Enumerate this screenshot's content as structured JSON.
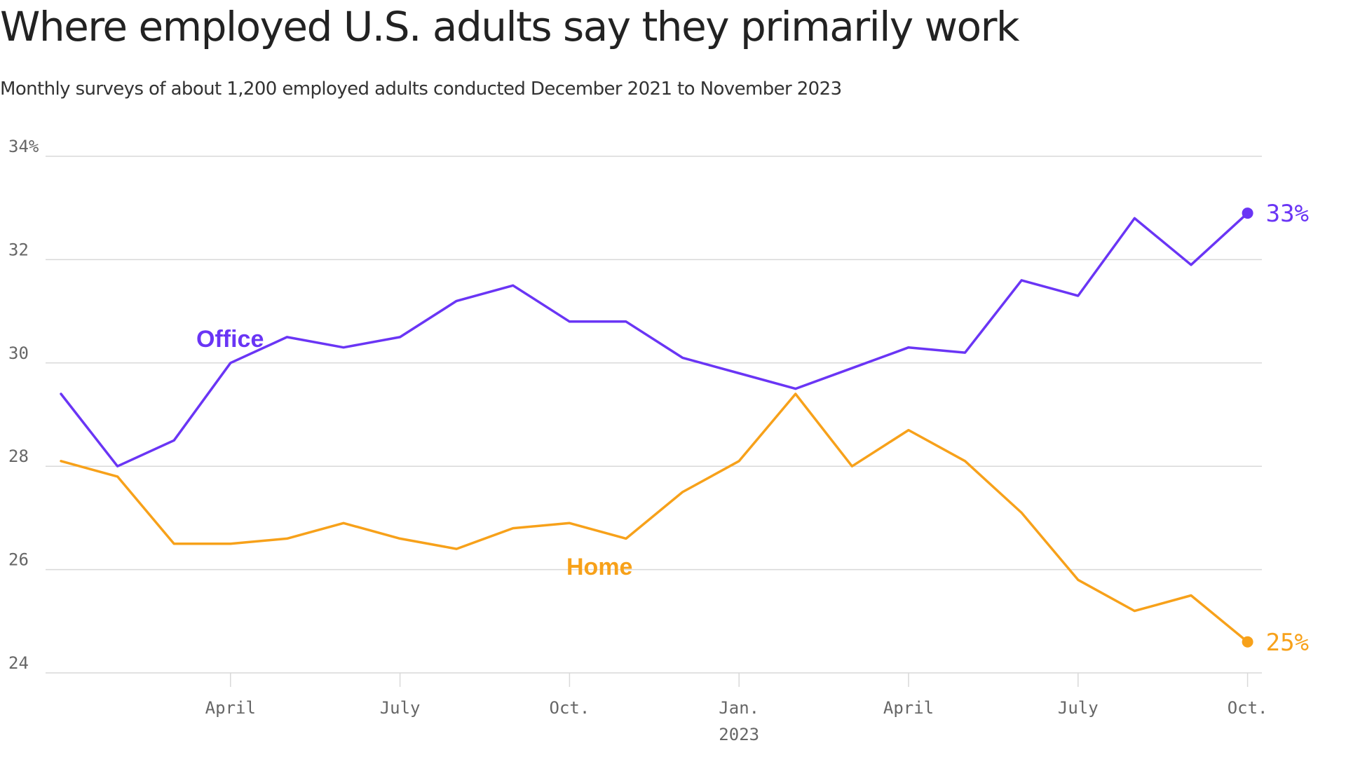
{
  "title": "Where employed U.S. adults say they primarily work",
  "subtitle": "Monthly surveys of about 1,200 employed adults conducted December 2021 to November 2023",
  "colors": {
    "office": "#6a35f5",
    "home": "#f7a11a",
    "grid": "#d9d9d9",
    "tick_text": "#666666"
  },
  "chart_data": {
    "type": "line",
    "x": [
      "2022-01",
      "2022-02",
      "2022-03",
      "2022-04",
      "2022-05",
      "2022-06",
      "2022-07",
      "2022-08",
      "2022-09",
      "2022-10",
      "2022-11",
      "2022-12",
      "2023-01",
      "2023-02",
      "2023-03",
      "2023-04",
      "2023-05",
      "2023-06",
      "2023-07",
      "2023-08",
      "2023-09",
      "2023-10",
      "2023-11"
    ],
    "series": [
      {
        "name": "Office",
        "color": "#6a35f5",
        "values": [
          29.4,
          28.0,
          28.5,
          30.0,
          30.5,
          30.3,
          30.5,
          31.2,
          31.5,
          30.8,
          30.8,
          30.1,
          29.8,
          29.5,
          29.9,
          30.3,
          30.2,
          31.6,
          31.3,
          32.8,
          31.9,
          32.9,
          null
        ]
      },
      {
        "name": "Home",
        "color": "#f7a11a",
        "values": [
          28.1,
          27.8,
          26.5,
          26.5,
          26.6,
          26.9,
          26.6,
          26.4,
          26.8,
          26.9,
          26.6,
          27.5,
          28.1,
          29.4,
          28.0,
          28.7,
          28.1,
          27.1,
          25.8,
          25.2,
          25.5,
          24.6,
          null
        ]
      }
    ],
    "y_ticks": [
      "34%",
      "32",
      "30",
      "28",
      "26",
      "24"
    ],
    "y_tick_values": [
      34,
      32,
      30,
      28,
      26,
      24
    ],
    "x_ticks": [
      {
        "label": "April",
        "x": "2022-04"
      },
      {
        "label": "July",
        "x": "2022-07"
      },
      {
        "label": "Oct.",
        "x": "2022-10"
      },
      {
        "label": "Jan.",
        "x": "2023-01"
      },
      {
        "label": "April",
        "x": "2023-04"
      },
      {
        "label": "July",
        "x": "2023-07"
      },
      {
        "label": "Oct.",
        "x": "2023-10"
      }
    ],
    "year_label": "2023",
    "ylim": [
      24,
      34
    ],
    "grid": true,
    "end_labels": {
      "office": "33%",
      "home": "25%"
    }
  }
}
